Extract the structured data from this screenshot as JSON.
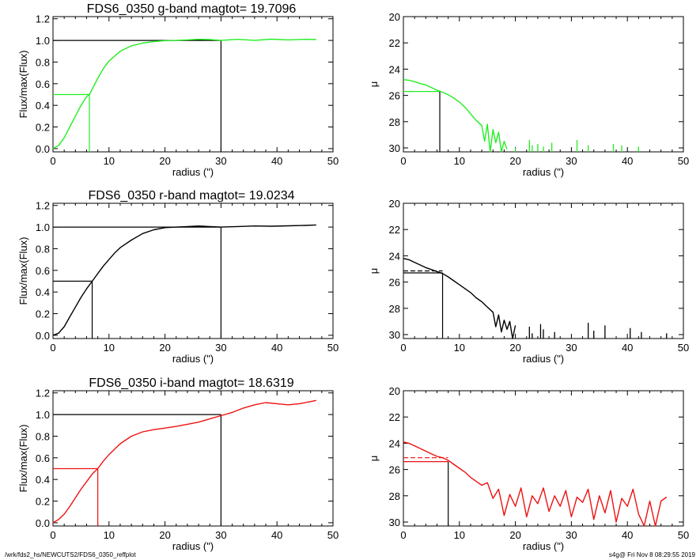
{
  "footer": {
    "path": "/wrk/fds2_hs/NEWCUTS2/FDS6_0350_reffplot",
    "stamp": "s4g@  Fri Nov  8 08:29:55 2019"
  },
  "colors": {
    "g": "#22ee22",
    "r": "#000000",
    "i": "#ee1111",
    "axis": "#000000"
  },
  "chart_data": [
    {
      "id": "g-growth",
      "type": "line",
      "title": "FDS6_0350 g-band  magtot=     19.7096",
      "xlabel": "radius (\")",
      "ylabel": "Flux/max(Flux)",
      "xlim": [
        0,
        50
      ],
      "ylim": [
        -0.03,
        1.22
      ],
      "xticks": [
        0,
        10,
        20,
        30,
        40,
        50
      ],
      "yticks": [
        0.0,
        0.2,
        0.4,
        0.6,
        0.8,
        1.0,
        1.2
      ],
      "ytick_labels": [
        "0.0",
        "0.2",
        "0.4",
        "0.6",
        "0.8",
        "1.0",
        "1.2"
      ],
      "color": "g",
      "series": [
        {
          "x": [
            0,
            1,
            2,
            3,
            4,
            5,
            6,
            6.5,
            7,
            8,
            9,
            10,
            12,
            14,
            16,
            18,
            20,
            22,
            24,
            26,
            28,
            30,
            33,
            36,
            39,
            42,
            45,
            47
          ],
          "y": [
            0,
            0.03,
            0.1,
            0.2,
            0.3,
            0.4,
            0.48,
            0.5,
            0.55,
            0.65,
            0.74,
            0.81,
            0.9,
            0.95,
            0.975,
            0.99,
            0.998,
            1.0,
            1.005,
            1.01,
            1.008,
            1.0,
            1.01,
            1.0,
            1.012,
            1.005,
            1.01,
            1.008
          ]
        }
      ],
      "markers": {
        "half": {
          "x": 6.5,
          "y": 0.5,
          "color": "g"
        },
        "total": {
          "x": 30,
          "y": 1.0,
          "color": "axis"
        }
      }
    },
    {
      "id": "g-profile",
      "type": "line",
      "title": "",
      "xlabel": "radius (\")",
      "ylabel": "μ",
      "xlim": [
        0,
        50
      ],
      "ylim": [
        30.3,
        20
      ],
      "xticks": [
        0,
        10,
        20,
        30,
        40,
        50
      ],
      "yticks": [
        20,
        22,
        24,
        26,
        28,
        30
      ],
      "ytick_labels": [
        "20",
        "22",
        "24",
        "26",
        "28",
        "30"
      ],
      "color": "g",
      "series": [
        {
          "x": [
            0,
            1,
            2,
            3,
            4,
            5,
            6,
            7,
            8,
            9,
            10,
            11,
            12,
            13,
            14,
            14.5,
            15,
            15.5,
            16,
            16.5,
            17,
            17.5,
            18,
            18.5
          ],
          "y": [
            24.8,
            24.85,
            24.95,
            25.1,
            25.2,
            25.4,
            25.6,
            25.75,
            25.95,
            26.2,
            26.5,
            26.9,
            27.4,
            27.9,
            28.3,
            29.5,
            28.2,
            30.3,
            28.6,
            29.6,
            28.8,
            30.3,
            29.5,
            30.1
          ]
        }
      ],
      "spikes": {
        "x": [
          20,
          22.5,
          23,
          24,
          25,
          26.5,
          31,
          33,
          37.5,
          39,
          42
        ],
        "y": [
          30.0,
          29.4,
          29.8,
          29.7,
          29.9,
          29.6,
          29.4,
          29.8,
          29.7,
          29.8,
          29.9
        ]
      },
      "markers": {
        "half": {
          "x": 6.5,
          "y": 25.7,
          "color": "axis",
          "hline_color": "g"
        }
      }
    },
    {
      "id": "r-growth",
      "type": "line",
      "title": "FDS6_0350 r-band  magtot=     19.0234",
      "xlabel": "radius (\")",
      "ylabel": "Flux/max(Flux)",
      "xlim": [
        0,
        50
      ],
      "ylim": [
        -0.03,
        1.22
      ],
      "xticks": [
        0,
        10,
        20,
        30,
        40,
        50
      ],
      "yticks": [
        0.0,
        0.2,
        0.4,
        0.6,
        0.8,
        1.0,
        1.2
      ],
      "ytick_labels": [
        "0.0",
        "0.2",
        "0.4",
        "0.6",
        "0.8",
        "1.0",
        "1.2"
      ],
      "color": "r",
      "series": [
        {
          "x": [
            0,
            1,
            2,
            3,
            4,
            5,
            6,
            7,
            8,
            9,
            10,
            11,
            12,
            14,
            16,
            18,
            20,
            22,
            24,
            26,
            28,
            30,
            33,
            36,
            39,
            42,
            45,
            47
          ],
          "y": [
            0,
            0.02,
            0.08,
            0.17,
            0.26,
            0.35,
            0.43,
            0.5,
            0.57,
            0.64,
            0.7,
            0.76,
            0.81,
            0.88,
            0.94,
            0.975,
            0.995,
            1.0,
            1.005,
            1.01,
            1.005,
            1.0,
            1.005,
            1.01,
            1.008,
            1.012,
            1.015,
            1.02
          ]
        }
      ],
      "markers": {
        "half": {
          "x": 7,
          "y": 0.5,
          "color": "r"
        },
        "total": {
          "x": 30,
          "y": 1.0,
          "color": "axis"
        }
      }
    },
    {
      "id": "r-profile",
      "type": "line",
      "title": "",
      "xlabel": "radius (\")",
      "ylabel": "μ",
      "xlim": [
        0,
        50
      ],
      "ylim": [
        30.3,
        20
      ],
      "xticks": [
        0,
        10,
        20,
        30,
        40,
        50
      ],
      "yticks": [
        20,
        22,
        24,
        26,
        28,
        30
      ],
      "ytick_labels": [
        "20",
        "22",
        "24",
        "26",
        "28",
        "30"
      ],
      "color": "r",
      "series": [
        {
          "x": [
            0,
            1,
            2,
            3,
            4,
            5,
            6,
            7,
            8,
            9,
            10,
            11,
            12,
            13,
            14,
            15,
            16,
            16.5,
            17,
            17.5,
            18,
            18.5,
            19,
            19.5,
            20
          ],
          "y": [
            24.2,
            24.3,
            24.5,
            24.7,
            24.9,
            25.05,
            25.2,
            25.35,
            25.6,
            25.9,
            26.2,
            26.5,
            26.8,
            27.2,
            27.5,
            27.9,
            28.3,
            29.4,
            28.5,
            29.8,
            28.9,
            29.6,
            29.0,
            30.3,
            29.3
          ]
        }
      ],
      "spikes": {
        "x": [
          22.5,
          23,
          24.5,
          25,
          27,
          33,
          34,
          36,
          40.5,
          42.5,
          47
        ],
        "y": [
          29.4,
          29.9,
          29.2,
          29.6,
          29.8,
          29.1,
          29.7,
          29.3,
          29.5,
          29.8,
          29.9
        ]
      },
      "markers": {
        "half": {
          "x": 7,
          "y": 25.3,
          "color": "axis",
          "hline_color": "r",
          "dashed_y": 25.15
        }
      }
    },
    {
      "id": "i-growth",
      "type": "line",
      "title": "FDS6_0350 i-band  magtot=     18.6319",
      "xlabel": "radius (\")",
      "ylabel": "Flux/max(Flux)",
      "xlim": [
        0,
        50
      ],
      "ylim": [
        -0.03,
        1.22
      ],
      "xticks": [
        0,
        10,
        20,
        30,
        40,
        50
      ],
      "yticks": [
        0.0,
        0.2,
        0.4,
        0.6,
        0.8,
        1.0,
        1.2
      ],
      "ytick_labels": [
        "0.0",
        "0.2",
        "0.4",
        "0.6",
        "0.8",
        "1.0",
        "1.2"
      ],
      "color": "i",
      "series": [
        {
          "x": [
            0,
            1,
            2,
            3,
            4,
            5,
            6,
            7,
            8,
            9,
            10,
            12,
            14,
            16,
            18,
            20,
            22,
            24,
            26,
            28,
            30,
            32,
            34,
            36,
            38,
            40,
            42,
            44,
            46,
            47
          ],
          "y": [
            0,
            0.03,
            0.08,
            0.15,
            0.23,
            0.31,
            0.38,
            0.45,
            0.5,
            0.57,
            0.63,
            0.73,
            0.8,
            0.84,
            0.86,
            0.875,
            0.89,
            0.91,
            0.93,
            0.96,
            0.99,
            1.02,
            1.06,
            1.09,
            1.11,
            1.1,
            1.09,
            1.1,
            1.12,
            1.13
          ]
        }
      ],
      "markers": {
        "half": {
          "x": 8,
          "y": 0.5,
          "color": "i"
        },
        "total": {
          "x": 30,
          "y": 1.0,
          "color": "axis"
        }
      }
    },
    {
      "id": "i-profile",
      "type": "line",
      "title": "",
      "xlabel": "radius (\")",
      "ylabel": "μ",
      "xlim": [
        0,
        50
      ],
      "ylim": [
        30.3,
        20
      ],
      "xticks": [
        0,
        10,
        20,
        30,
        40,
        50
      ],
      "yticks": [
        20,
        22,
        24,
        26,
        28,
        30
      ],
      "ytick_labels": [
        "20",
        "22",
        "24",
        "26",
        "28",
        "30"
      ],
      "color": "i",
      "series": [
        {
          "x": [
            0,
            1,
            2,
            3,
            4,
            5,
            6,
            7,
            8,
            9,
            10,
            11,
            12,
            13,
            14,
            15,
            16,
            17,
            18,
            19,
            20,
            21,
            22,
            23,
            24,
            25,
            26,
            27,
            28,
            29,
            30,
            31,
            32,
            33,
            34,
            35,
            36,
            37,
            38,
            39,
            40,
            41,
            42,
            43,
            44,
            45,
            46,
            47
          ],
          "y": [
            23.9,
            24.0,
            24.2,
            24.4,
            24.6,
            24.8,
            25.0,
            25.1,
            25.3,
            25.6,
            25.9,
            26.2,
            26.6,
            26.9,
            27.2,
            27.0,
            28.2,
            27.5,
            29.5,
            27.9,
            28.8,
            27.4,
            29.6,
            28.0,
            28.6,
            27.4,
            29.2,
            28.0,
            28.8,
            27.6,
            29.6,
            28.1,
            28.5,
            27.5,
            29.8,
            28.0,
            29.3,
            27.6,
            30.0,
            28.2,
            28.8,
            27.5,
            29.4,
            30.3,
            28.4,
            30.3,
            28.4,
            28.1
          ]
        }
      ],
      "markers": {
        "half": {
          "x": 8,
          "y": 25.4,
          "color": "axis",
          "hline_color": "i",
          "dashed_y": 25.1
        }
      }
    }
  ]
}
